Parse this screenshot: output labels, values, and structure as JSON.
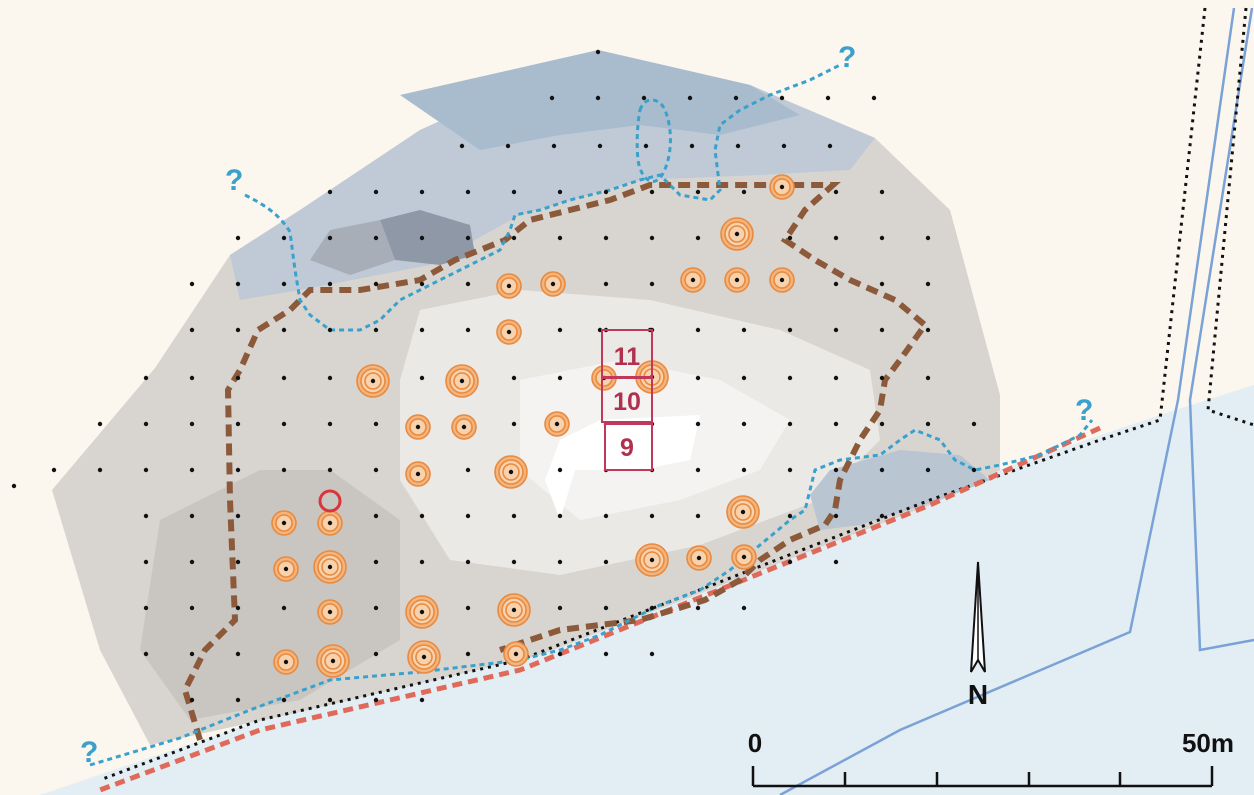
{
  "map": {
    "trench_labels": [
      "11",
      "10",
      "9"
    ],
    "uncertain_marks": [
      "?",
      "?",
      "?",
      "?"
    ],
    "north_label": "N",
    "scale_start": "0",
    "scale_end": "50m"
  },
  "colors": {
    "background": "#fbf6ee",
    "water": "#e3edf4",
    "river_line": "#7aa2d6",
    "blue_boundary": "#3aa0cc",
    "brown_boundary": "#8c5a3a",
    "red_line": "#e06a5a",
    "orange_circle": "#e88a3f",
    "trench": "#c0395a"
  }
}
